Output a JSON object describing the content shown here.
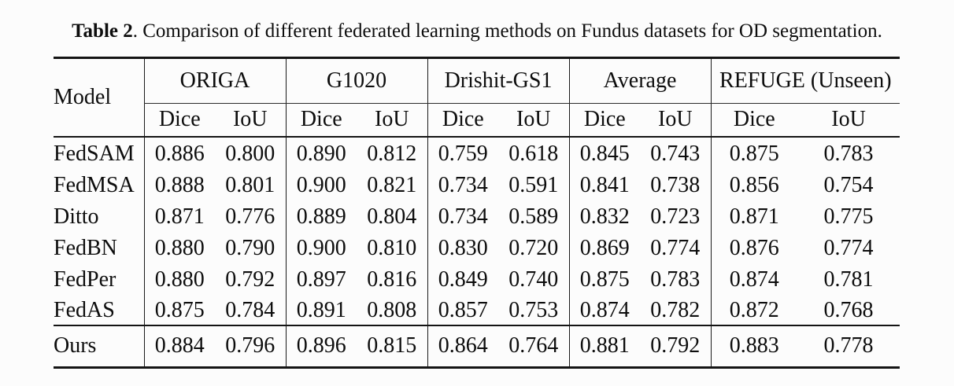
{
  "caption": {
    "label": "Table 2",
    "rest": ". Comparison of different federated learning methods on Fundus datasets for OD segmentation."
  },
  "table": {
    "model_header": "Model",
    "group_labels": [
      "ORIGA",
      "G1020",
      "Drishit-GS1",
      "Average",
      "REFUGE (Unseen)"
    ],
    "metric_headers": [
      "Dice",
      "IoU"
    ],
    "body_rows": [
      {
        "model": "FedSAM",
        "bold_model": false,
        "values": [
          "0.886",
          "0.800",
          "0.890",
          "0.812",
          "0.759",
          "0.618",
          "0.845",
          "0.743",
          "0.875",
          "0.783"
        ],
        "bold_values": [
          9
        ]
      },
      {
        "model": "FedMSA",
        "bold_model": false,
        "values": [
          "0.888",
          "0.801",
          "0.900",
          "0.821",
          "0.734",
          "0.591",
          "0.841",
          "0.738",
          "0.856",
          "0.754"
        ],
        "bold_values": [
          0,
          1,
          2,
          3
        ]
      },
      {
        "model": "Ditto",
        "bold_model": false,
        "values": [
          "0.871",
          "0.776",
          "0.889",
          "0.804",
          "0.734",
          "0.589",
          "0.832",
          "0.723",
          "0.871",
          "0.775"
        ],
        "bold_values": []
      },
      {
        "model": "FedBN",
        "bold_model": false,
        "values": [
          "0.880",
          "0.790",
          "0.900",
          "0.810",
          "0.830",
          "0.720",
          "0.869",
          "0.774",
          "0.876",
          "0.774"
        ],
        "bold_values": [
          2
        ]
      },
      {
        "model": "FedPer",
        "bold_model": false,
        "values": [
          "0.880",
          "0.792",
          "0.897",
          "0.816",
          "0.849",
          "0.740",
          "0.875",
          "0.783",
          "0.874",
          "0.781"
        ],
        "bold_values": []
      },
      {
        "model": "FedAS",
        "bold_model": false,
        "values": [
          "0.875",
          "0.784",
          "0.891",
          "0.808",
          "0.857",
          "0.753",
          "0.874",
          "0.782",
          "0.872",
          "0.768"
        ],
        "bold_values": []
      }
    ],
    "final_rows": [
      {
        "model": "Ours",
        "bold_model": true,
        "values": [
          "0.884",
          "0.796",
          "0.896",
          "0.815",
          "0.864",
          "0.764",
          "0.881",
          "0.792",
          "0.883",
          "0.778"
        ],
        "bold_values": [
          4,
          5,
          6,
          7,
          8
        ]
      }
    ]
  }
}
